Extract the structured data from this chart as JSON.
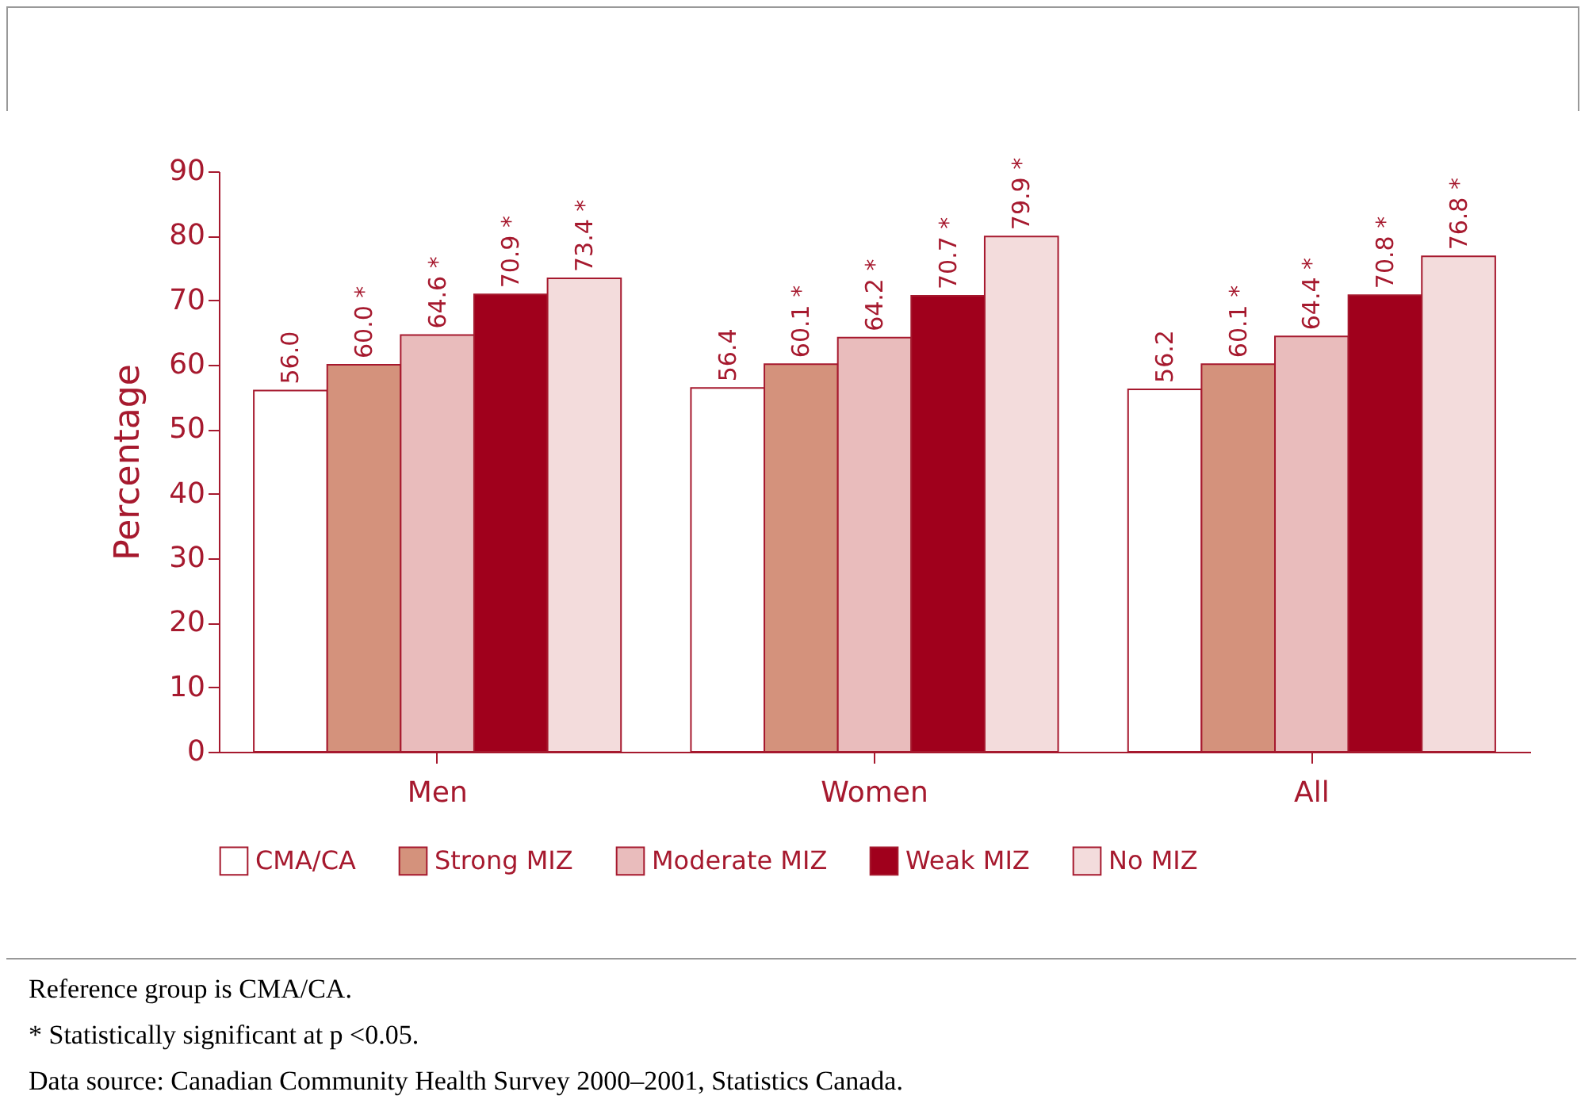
{
  "chart_data": {
    "type": "bar",
    "ylabel": "Percentage",
    "categories": [
      "Men",
      "Women",
      "All"
    ],
    "series": [
      {
        "name": "CMA/CA",
        "color": "#ffffff",
        "values": [
          56.0,
          56.4,
          56.2
        ],
        "value_labels": [
          "56.0",
          "56.4",
          "56.2"
        ]
      },
      {
        "name": "Strong MIZ",
        "color": "#d4927c",
        "values": [
          60.0,
          60.1,
          60.1
        ],
        "value_labels": [
          "60.0 *",
          "60.1 *",
          "60.1 *"
        ]
      },
      {
        "name": "Moderate MIZ",
        "color": "#e9bcbc",
        "values": [
          64.6,
          64.2,
          64.4
        ],
        "value_labels": [
          "64.6 *",
          "64.2 *",
          "64.4 *"
        ]
      },
      {
        "name": "Weak MIZ",
        "color": "#a0001c",
        "values": [
          70.9,
          70.7,
          70.8
        ],
        "value_labels": [
          "70.9 *",
          "70.7 *",
          "70.8 *"
        ]
      },
      {
        "name": "No MIZ",
        "color": "#f3dcdc",
        "values": [
          73.4,
          79.9,
          76.8
        ],
        "value_labels": [
          "73.4 *",
          "79.9 *",
          "76.8 *"
        ]
      }
    ],
    "ylim": [
      0,
      90
    ],
    "yticks": [
      0,
      10,
      20,
      30,
      40,
      50,
      60,
      70,
      80,
      90
    ],
    "grid": false,
    "legend": "bottom",
    "annotations": [
      "Reference group is CMA/CA.",
      "* Statistically significant at p <0.05.",
      "Data source: Canadian Community Health Survey 2000–2001, Statistics Canada."
    ]
  }
}
